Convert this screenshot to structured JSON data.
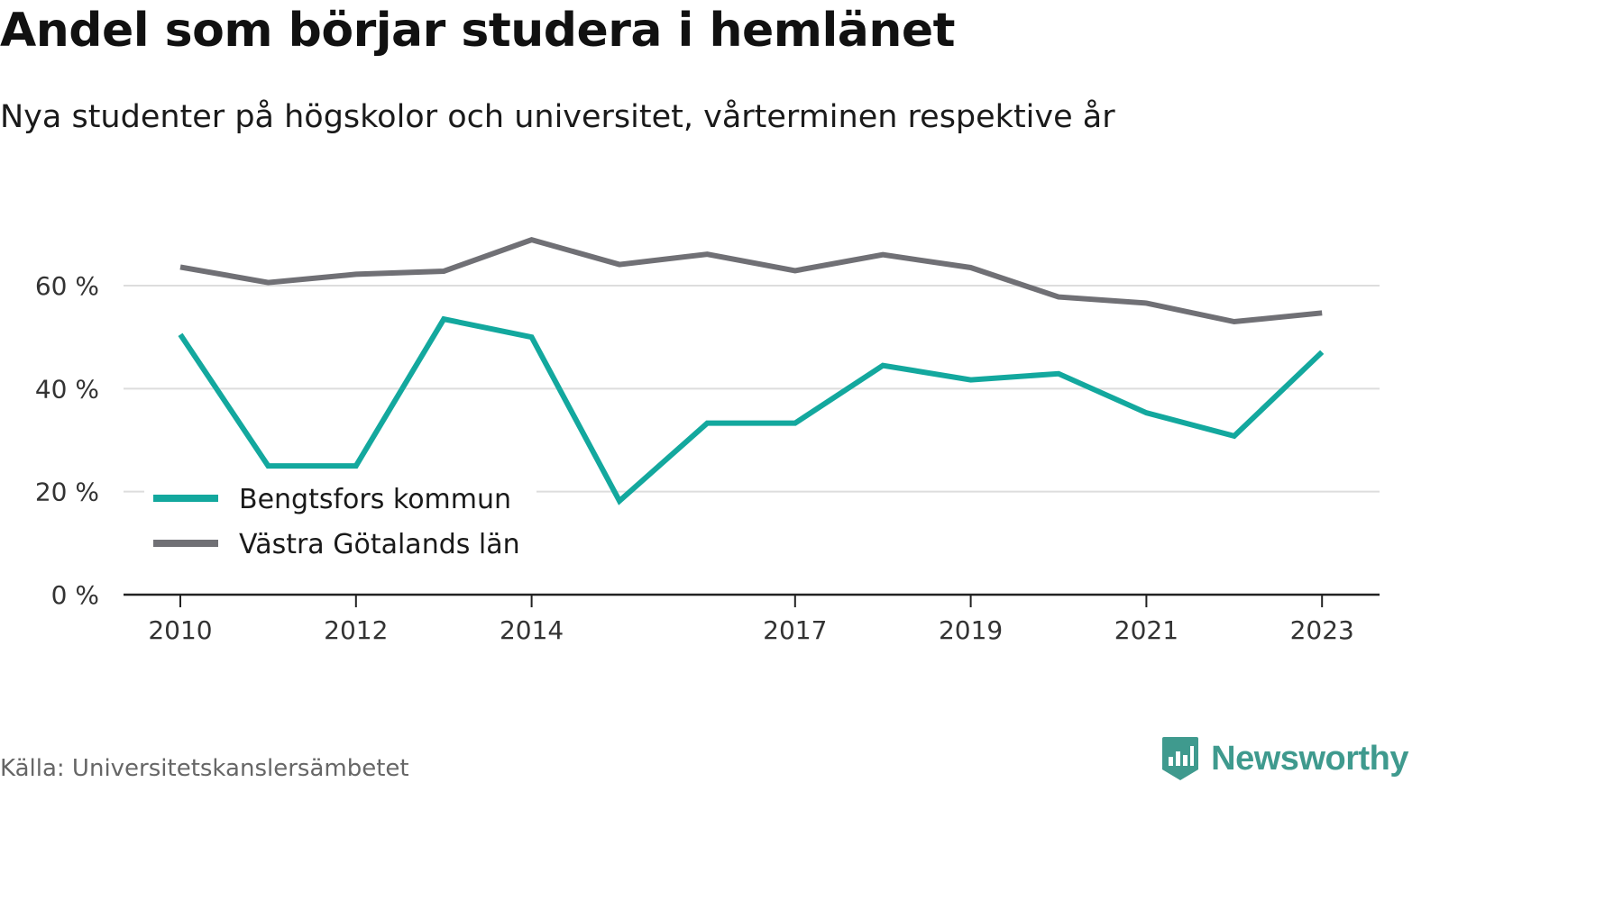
{
  "title": "Andel som börjar studera i hemlänet",
  "subtitle": "Nya studenter på högskolor och universitet, vårterminen respektive år",
  "source": "Källa: Universitetskanslersämbetet",
  "brand": {
    "name": "Newsworthy",
    "icon": "newsworthy-logo-icon",
    "color": "#3f9a8e"
  },
  "chart_data": {
    "type": "line",
    "title": "Andel som börjar studera i hemlänet",
    "subtitle": "Nya studenter på högskolor och universitet, vårterminen respektive år",
    "xlabel": "",
    "ylabel": "",
    "x": [
      2010,
      2011,
      2012,
      2013,
      2014,
      2015,
      2016,
      2017,
      2018,
      2019,
      2020,
      2021,
      2022,
      2023
    ],
    "x_tick_labels": [
      "2010",
      "2012",
      "2014",
      "2017",
      "2019",
      "2021",
      "2023"
    ],
    "y_ticks": [
      0,
      20,
      40,
      60
    ],
    "y_tick_labels": [
      "0 %",
      "20 %",
      "40 %",
      "60 %"
    ],
    "ylim": [
      0,
      70
    ],
    "grid": "horizontal",
    "legend_position": "bottom-left",
    "series": [
      {
        "name": "Bengtsfors kommun",
        "color": "#13a89e",
        "values": [
          50.5,
          25.0,
          25.0,
          53.5,
          50.0,
          18.2,
          33.3,
          33.3,
          44.5,
          41.7,
          42.9,
          35.3,
          30.8,
          47.1
        ]
      },
      {
        "name": "Västra Götalands län",
        "color": "#707075",
        "values": [
          63.6,
          60.6,
          62.2,
          62.8,
          68.9,
          64.1,
          66.1,
          62.9,
          66.0,
          63.5,
          57.8,
          56.6,
          53.0,
          54.7
        ]
      }
    ]
  }
}
